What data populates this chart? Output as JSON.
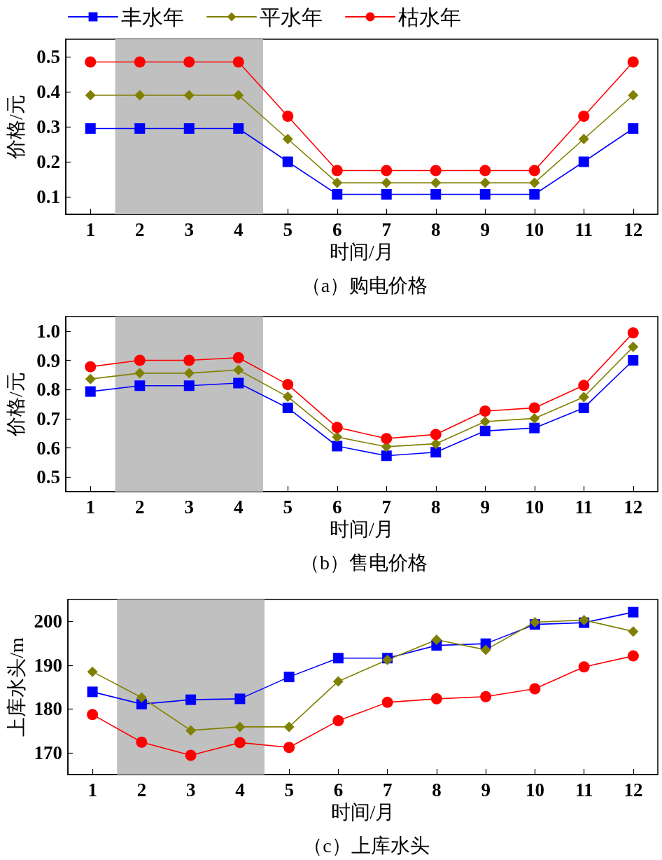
{
  "chart_data": [
    {
      "type": "line",
      "title": "（a）购电价格",
      "xlabel": "时间/月",
      "ylabel": "价格/元",
      "x": [
        1,
        2,
        3,
        4,
        5,
        6,
        7,
        8,
        9,
        10,
        11,
        12
      ],
      "xlim": [
        0.5,
        12.5
      ],
      "xticks": [
        1,
        2,
        3,
        4,
        5,
        6,
        7,
        8,
        9,
        10,
        11,
        12
      ],
      "ylim": [
        0.05,
        0.55
      ],
      "yticks": [
        0.1,
        0.2,
        0.3,
        0.4,
        0.5
      ],
      "legend": "top",
      "bands": [
        {
          "axis": "x",
          "from": 1.5,
          "to": 4.5,
          "color": "#c0c0c0"
        }
      ],
      "series": [
        {
          "name": "丰水年",
          "color": "#0000ff",
          "marker": "square",
          "values": [
            0.295,
            0.295,
            0.295,
            0.295,
            0.2,
            0.107,
            0.107,
            0.107,
            0.107,
            0.107,
            0.2,
            0.295
          ]
        },
        {
          "name": "平水年",
          "color": "#808000",
          "marker": "diamond",
          "values": [
            0.39,
            0.39,
            0.39,
            0.39,
            0.265,
            0.14,
            0.14,
            0.14,
            0.14,
            0.14,
            0.265,
            0.39
          ]
        },
        {
          "name": "枯水年",
          "color": "#ff0000",
          "marker": "circle",
          "values": [
            0.485,
            0.485,
            0.485,
            0.485,
            0.33,
            0.175,
            0.175,
            0.175,
            0.175,
            0.175,
            0.33,
            0.485
          ]
        }
      ]
    },
    {
      "type": "line",
      "title": "（b）售电价格",
      "xlabel": "时间/月",
      "ylabel": "价格/元",
      "x": [
        1,
        2,
        3,
        4,
        5,
        6,
        7,
        8,
        9,
        10,
        11,
        12
      ],
      "xlim": [
        0.5,
        12.5
      ],
      "xticks": [
        1,
        2,
        3,
        4,
        5,
        6,
        7,
        8,
        9,
        10,
        11,
        12
      ],
      "ylim": [
        0.45,
        1.05
      ],
      "yticks": [
        0.5,
        0.6,
        0.7,
        0.8,
        0.9,
        {
          "value": 1,
          "label": "1.0"
        }
      ],
      "bands": [
        {
          "axis": "x",
          "from": 1.5,
          "to": 4.5,
          "color": "#c0c0c0"
        }
      ],
      "series": [
        {
          "color": "#0000ff",
          "marker": "square",
          "values": [
            0.793,
            0.813,
            0.813,
            0.822,
            0.737,
            0.606,
            0.573,
            0.585,
            0.658,
            0.668,
            0.737,
            0.9
          ]
        },
        {
          "color": "#808000",
          "marker": "diamond",
          "values": [
            0.836,
            0.856,
            0.856,
            0.867,
            0.775,
            0.637,
            0.604,
            0.614,
            0.69,
            0.701,
            0.774,
            0.946
          ]
        },
        {
          "color": "#ff0000",
          "marker": "circle",
          "values": [
            0.878,
            0.9,
            0.9,
            0.909,
            0.817,
            0.67,
            0.632,
            0.646,
            0.726,
            0.737,
            0.814,
            0.994
          ]
        }
      ]
    },
    {
      "type": "line",
      "title": "（c）上库水头",
      "xlabel": "时间/月",
      "ylabel": "上库水头/m",
      "x": [
        1,
        2,
        3,
        4,
        5,
        6,
        7,
        8,
        9,
        10,
        11,
        12
      ],
      "xlim": [
        0.5,
        12.5
      ],
      "xticks": [
        1,
        2,
        3,
        4,
        5,
        6,
        7,
        8,
        9,
        10,
        11,
        12
      ],
      "ylim": [
        165,
        205
      ],
      "yticks": [
        170,
        180,
        190,
        200
      ],
      "bands": [
        {
          "axis": "x",
          "from": 1.5,
          "to": 4.5,
          "color": "#c0c0c0"
        }
      ],
      "series": [
        {
          "color": "#0000ff",
          "marker": "square",
          "values": [
            183.9,
            181.1,
            182.1,
            182.3,
            187.3,
            191.6,
            191.6,
            194.5,
            194.9,
            199.3,
            199.7,
            202.1
          ]
        },
        {
          "color": "#808000",
          "marker": "diamond",
          "values": [
            188.5,
            182.6,
            175.1,
            175.9,
            175.9,
            186.3,
            191.2,
            195.8,
            193.5,
            199.8,
            200.3,
            197.7
          ]
        },
        {
          "color": "#ff0000",
          "marker": "circle",
          "values": [
            178.7,
            172.4,
            169.4,
            172.3,
            171.2,
            177.3,
            181.5,
            182.3,
            182.8,
            184.6,
            189.6,
            192.1
          ]
        }
      ]
    }
  ]
}
